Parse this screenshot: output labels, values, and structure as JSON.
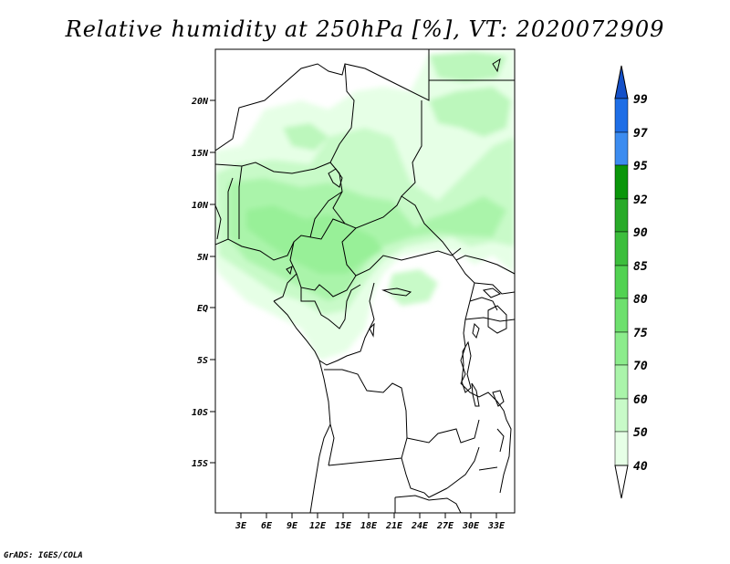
{
  "title": "Relative humidity at 250hPa [%], VT: 2020072909",
  "credit": "GrADS: IGES/COLA",
  "map": {
    "lat_ticks": [
      "20N",
      "15N",
      "10N",
      "5N",
      "EQ",
      "5S",
      "10S",
      "15S"
    ],
    "lon_ticks": [
      "3E",
      "6E",
      "9E",
      "12E",
      "15E",
      "18E",
      "21E",
      "24E",
      "27E",
      "30E",
      "33E"
    ]
  },
  "colorbar": {
    "levels": [
      "99",
      "97",
      "95",
      "92",
      "90",
      "85",
      "80",
      "75",
      "70",
      "60",
      "50",
      "40"
    ],
    "colors": [
      "#1e6ee6",
      "#3c8cf0",
      "#0a960a",
      "#28aa28",
      "#3cbe3c",
      "#52d252",
      "#6ee06e",
      "#8cec8c",
      "#aaf4aa",
      "#c8fac8",
      "#e6ffe6"
    ],
    "top_color": "#1450c8",
    "bottom_color": "#ffffff"
  }
}
